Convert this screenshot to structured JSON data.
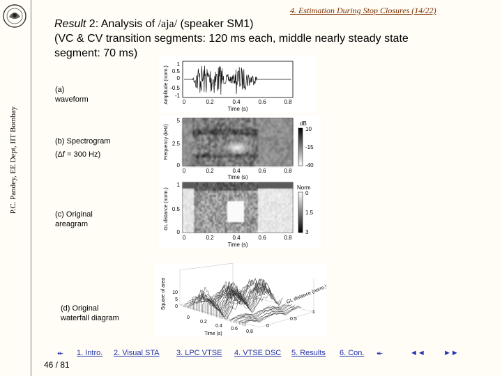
{
  "sidebar": {
    "credit": "P.C. Pandey, EE Dept, IIT Bombay"
  },
  "header": {
    "section_link": "4. Estimation During Stop Closures (14/22)"
  },
  "title": {
    "prefix": "Result",
    "mid": " 2: Analysis of ",
    "symbol": "/aja/",
    "suffix": " (speaker SM1)",
    "line2": "(VC & CV transition segments: 120 ms each, middle nearly steady state",
    "line3": "segment: 70 ms)"
  },
  "labels": {
    "a_line1": "(a)",
    "a_line2": "waveform",
    "b_line1": "(b) Spectrogram",
    "b_line2": "(Δf = 300 Hz)",
    "c_line1": "(c) Original",
    "c_line2": "areagram",
    "d_line1": "(d) Original",
    "d_line2": "waterfall diagram"
  },
  "figures": {
    "waveform": {
      "ylabel": "Amplitude (norm.)",
      "xlabel": "Time (s)",
      "yticks": [
        "1",
        "0.5",
        "0",
        "-0.5",
        "-1"
      ],
      "xticks": [
        "0",
        "0.2",
        "0.4",
        "0.6",
        "0.8"
      ]
    },
    "spectrogram": {
      "ylabel": "Frequency (kHz)",
      "xlabel": "Time (s)",
      "yticks": [
        "5",
        "2.5",
        "0"
      ],
      "xticks": [
        "0",
        "0.2",
        "0.4",
        "0.6",
        "0.8"
      ],
      "colorbar_title": "dB",
      "colorbar_ticks": [
        "10",
        "-15",
        "-40"
      ]
    },
    "areagram": {
      "ylabel": "GL distance (norm.)",
      "xlabel": "Time (s)",
      "yticks": [
        "1",
        "0.5",
        "0"
      ],
      "xticks": [
        "0",
        "0.2",
        "0.4",
        "0.6",
        "0.8"
      ],
      "colorbar_title": "Norm",
      "colorbar_ticks": [
        "0",
        "1.5",
        "3"
      ]
    },
    "waterfall": {
      "zlabel": "Square of area",
      "xlabel": "Time (s)",
      "ylabel": "GL distance (norm.)",
      "zticks": [
        "10",
        "5",
        "0"
      ],
      "xticks": [
        "0",
        "0.2",
        "0.4",
        "0.6",
        "0.8"
      ],
      "yticks": [
        "0",
        "0.5",
        "1"
      ]
    }
  },
  "nav": {
    "prev": "↞",
    "items": [
      "1. Intro.",
      "2. Visual STA",
      "3. LPC VTSE",
      "4. VTSE DSC",
      "5. Results",
      "6. Con."
    ],
    "next": "↞",
    "back": "◄◄",
    "forward": "►►"
  },
  "page": "46 / 81",
  "colors": {
    "nav_link": "#2233aa",
    "section_link": "#7a2f00",
    "background": "#fffdf6"
  }
}
